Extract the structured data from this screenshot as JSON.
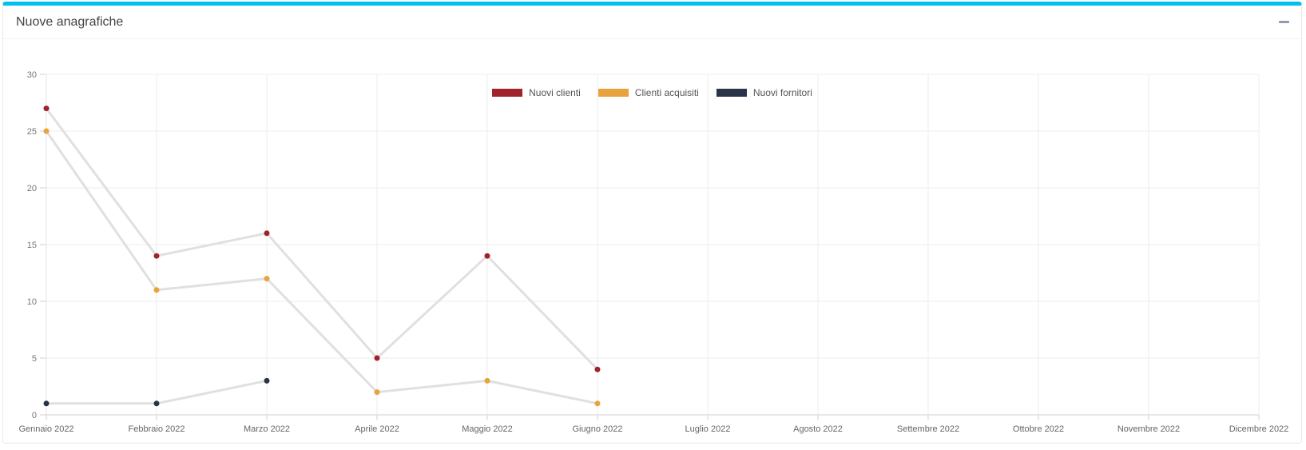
{
  "panel": {
    "title": "Nuove anagrafiche"
  },
  "colors": {
    "accent_top_border": "#00c0ef",
    "collapse_icon": "#929cb1",
    "series_line": "#e0e0e0",
    "grid": "#ededed",
    "axis": "#cfcfcf"
  },
  "chart_data": {
    "type": "line",
    "title": "Nuove anagrafiche",
    "categories": [
      "Gennaio 2022",
      "Febbraio 2022",
      "Marzo 2022",
      "Aprile 2022",
      "Maggio 2022",
      "Giugno 2022",
      "Luglio 2022",
      "Agosto 2022",
      "Settembre 2022",
      "Ottobre 2022",
      "Novembre 2022",
      "Dicembre 2022"
    ],
    "series": [
      {
        "name": "Nuovi clienti",
        "color": "#a0232b",
        "values": [
          27,
          14,
          16,
          5,
          14,
          4,
          null,
          null,
          null,
          null,
          null,
          null
        ]
      },
      {
        "name": "Clienti acquisiti",
        "color": "#e8a33d",
        "values": [
          25,
          11,
          12,
          2,
          3,
          1,
          null,
          null,
          null,
          null,
          null,
          null
        ]
      },
      {
        "name": "Nuovi fornitori",
        "color": "#2a3347",
        "values": [
          1,
          1,
          3,
          null,
          null,
          null,
          null,
          null,
          null,
          null,
          null,
          null
        ]
      }
    ],
    "xlabel": "",
    "ylabel": "",
    "ylim": [
      0,
      30
    ],
    "ytick_step": 5,
    "grid": true,
    "legend_position": "top",
    "marker": "circle",
    "connector_line_color": "#e0e0e0"
  }
}
